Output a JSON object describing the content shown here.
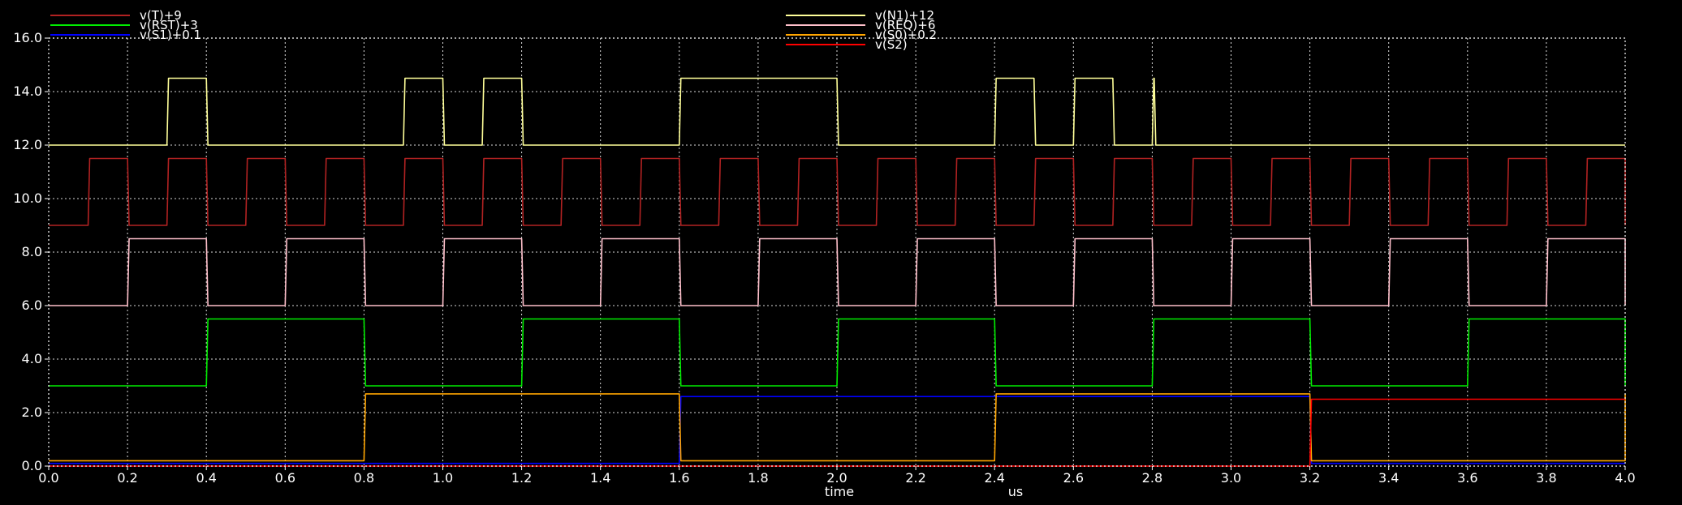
{
  "chart_data": {
    "type": "line",
    "title": "",
    "xlabel": "time",
    "xunit": "us",
    "ylabel": "",
    "xlim": [
      0,
      4.0
    ],
    "ylim": [
      0,
      16.0
    ],
    "x_ticks": [
      0.0,
      0.2,
      0.4,
      0.6,
      0.8,
      1.0,
      1.2,
      1.4,
      1.6,
      1.8,
      2.0,
      2.2,
      2.4,
      2.6,
      2.8,
      3.0,
      3.2,
      3.4,
      3.6,
      3.8,
      4.0
    ],
    "y_ticks": [
      0.0,
      2.0,
      4.0,
      6.0,
      8.0,
      10.0,
      12.0,
      14.0,
      16.0
    ],
    "x_tick_labels": [
      "0.0",
      "0.2",
      "0.4",
      "0.6",
      "0.8",
      "1.0",
      "1.2",
      "1.4",
      "1.6",
      "1.8",
      "2.0",
      "2.2",
      "2.4",
      "2.6",
      "2.8",
      "3.0",
      "3.2",
      "3.4",
      "3.6",
      "3.8",
      "4.0"
    ],
    "y_tick_labels": [
      "0.0",
      "2.0",
      "4.0",
      "6.0",
      "8.0",
      "10.0",
      "12.0",
      "14.0",
      "16.0"
    ],
    "grid": true,
    "background": "#000000",
    "legend_position": "top",
    "series": [
      {
        "name": "v(T)+9",
        "color": "#b22222",
        "step": true,
        "low": 9.0,
        "high": 11.5,
        "points": [
          [
            0.0,
            9.0
          ],
          [
            0.1,
            11.5
          ],
          [
            0.2,
            9.0
          ],
          [
            0.3,
            11.5
          ],
          [
            0.4,
            9.0
          ],
          [
            0.5,
            11.5
          ],
          [
            0.6,
            9.0
          ],
          [
            0.7,
            11.5
          ],
          [
            0.8,
            9.0
          ],
          [
            0.9,
            11.5
          ],
          [
            1.0,
            9.0
          ],
          [
            1.1,
            11.5
          ],
          [
            1.2,
            9.0
          ],
          [
            1.3,
            11.5
          ],
          [
            1.4,
            9.0
          ],
          [
            1.5,
            11.5
          ],
          [
            1.6,
            9.0
          ],
          [
            1.7,
            11.5
          ],
          [
            1.8,
            9.0
          ],
          [
            1.9,
            11.5
          ],
          [
            2.0,
            9.0
          ],
          [
            2.1,
            11.5
          ],
          [
            2.2,
            9.0
          ],
          [
            2.3,
            11.5
          ],
          [
            2.4,
            9.0
          ],
          [
            2.5,
            11.5
          ],
          [
            2.6,
            9.0
          ],
          [
            2.7,
            11.5
          ],
          [
            2.8,
            9.0
          ],
          [
            2.9,
            11.5
          ],
          [
            3.0,
            9.0
          ],
          [
            3.1,
            11.5
          ],
          [
            3.2,
            9.0
          ],
          [
            3.3,
            11.5
          ],
          [
            3.4,
            9.0
          ],
          [
            3.5,
            11.5
          ],
          [
            3.6,
            9.0
          ],
          [
            3.7,
            11.5
          ],
          [
            3.8,
            9.0
          ],
          [
            3.9,
            11.5
          ],
          [
            4.0,
            9.0
          ]
        ]
      },
      {
        "name": "v(RST)+3",
        "color": "#00ee00",
        "step": true,
        "low": 3.0,
        "high": 5.5,
        "points": [
          [
            0.0,
            3.0
          ],
          [
            0.4,
            5.5
          ],
          [
            0.8,
            3.0
          ],
          [
            1.2,
            5.5
          ],
          [
            1.6,
            3.0
          ],
          [
            2.0,
            5.5
          ],
          [
            2.4,
            3.0
          ],
          [
            2.8,
            5.5
          ],
          [
            3.2,
            3.0
          ],
          [
            3.6,
            5.5
          ],
          [
            4.0,
            3.0
          ]
        ]
      },
      {
        "name": "v(S1)+0.1",
        "color": "#0000ff",
        "step": true,
        "low": 0.1,
        "high": 2.6,
        "points": [
          [
            0.0,
            0.1
          ],
          [
            1.6,
            2.6
          ],
          [
            3.2,
            0.1
          ],
          [
            4.0,
            0.1
          ]
        ]
      },
      {
        "name": "v(N1)+12",
        "color": "#ffff99",
        "step": true,
        "low": 12.0,
        "high": 14.5,
        "points": [
          [
            0.0,
            12.0
          ],
          [
            0.3,
            14.5
          ],
          [
            0.4,
            12.0
          ],
          [
            0.9,
            14.5
          ],
          [
            1.0,
            12.0
          ],
          [
            1.1,
            14.5
          ],
          [
            1.2,
            12.0
          ],
          [
            1.6,
            14.5
          ],
          [
            2.0,
            12.0
          ],
          [
            2.4,
            14.5
          ],
          [
            2.5,
            12.0
          ],
          [
            2.6,
            14.5
          ],
          [
            2.7,
            12.0
          ],
          [
            2.8,
            14.5
          ],
          [
            2.805,
            12.0
          ],
          [
            4.0,
            12.0
          ]
        ]
      },
      {
        "name": "v(REQ)+6",
        "color": "#ffc0cb",
        "step": true,
        "low": 6.0,
        "high": 8.5,
        "points": [
          [
            0.0,
            6.0
          ],
          [
            0.2,
            8.5
          ],
          [
            0.4,
            6.0
          ],
          [
            0.6,
            8.5
          ],
          [
            0.8,
            6.0
          ],
          [
            1.0,
            8.5
          ],
          [
            1.2,
            6.0
          ],
          [
            1.4,
            8.5
          ],
          [
            1.6,
            6.0
          ],
          [
            1.8,
            8.5
          ],
          [
            2.0,
            6.0
          ],
          [
            2.2,
            8.5
          ],
          [
            2.4,
            6.0
          ],
          [
            2.6,
            8.5
          ],
          [
            2.8,
            6.0
          ],
          [
            3.0,
            8.5
          ],
          [
            3.2,
            6.0
          ],
          [
            3.4,
            8.5
          ],
          [
            3.6,
            6.0
          ],
          [
            3.8,
            8.5
          ],
          [
            4.0,
            6.0
          ]
        ]
      },
      {
        "name": "v(S0)+0.2",
        "color": "#ffa500",
        "step": true,
        "low": 0.2,
        "high": 2.7,
        "points": [
          [
            0.0,
            0.2
          ],
          [
            0.8,
            2.7
          ],
          [
            1.6,
            0.2
          ],
          [
            2.4,
            2.7
          ],
          [
            3.2,
            0.2
          ],
          [
            4.0,
            2.7
          ]
        ]
      },
      {
        "name": "v(S2)",
        "color": "#ff0000",
        "step": true,
        "low": 0.0,
        "high": 2.5,
        "points": [
          [
            0.0,
            0.0
          ],
          [
            3.2,
            2.5
          ],
          [
            4.0,
            2.5
          ]
        ]
      }
    ],
    "legend_columns": [
      [
        "v(T)+9",
        "v(RST)+3",
        "v(S1)+0.1"
      ],
      [
        "v(N1)+12",
        "v(REQ)+6",
        "v(S0)+0.2",
        "v(S2)"
      ]
    ]
  },
  "colors": {
    "grid": "#ffffff",
    "axis": "#ffffff",
    "text": "#ffffff"
  }
}
